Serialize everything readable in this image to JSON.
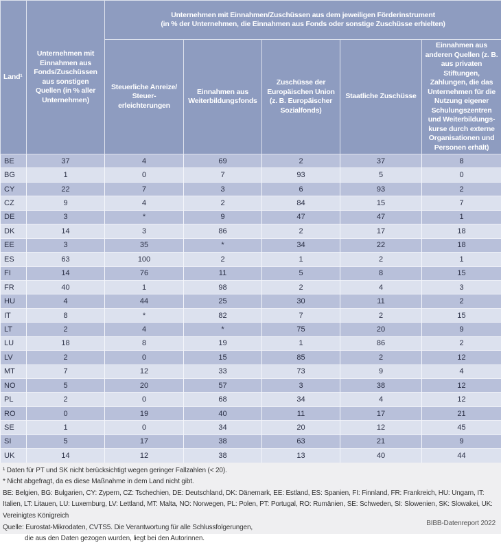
{
  "header": {
    "land": "Land¹",
    "total": "Unternehmen mit Einnahmen aus Fonds/Zuschüssen aus sonstigen Quellen (in % aller Unternehmen)",
    "group_line1": "Unternehmen mit Einnahmen/Zuschüssen aus dem jeweiligen Förderinstrument",
    "group_line2": "(in % der Unternehmen, die Einnahmen aus Fonds oder sonstige Zuschüsse erhielten)",
    "columns": [
      "Steuerliche Anreize/ Steuer-erleichterungen",
      "Einnahmen aus Weiterbildungsfonds",
      "Zuschüsse der Europäischen Union (z. B. Europäischer Sozialfonds)",
      "Staatliche Zuschüsse",
      "Einnahmen aus anderen Quellen (z. B. aus privaten Stiftungen, Zahlungen, die das Unternehmen für die Nutzung eigener Schulungszentren und Weiterbildungs-kurse durch externe Organisationen und Personen erhält)"
    ]
  },
  "rows": [
    [
      "BE",
      "37",
      "4",
      "69",
      "2",
      "37",
      "8"
    ],
    [
      "BG",
      "1",
      "0",
      "7",
      "93",
      "5",
      "0"
    ],
    [
      "CY",
      "22",
      "7",
      "3",
      "6",
      "93",
      "2"
    ],
    [
      "CZ",
      "9",
      "4",
      "2",
      "84",
      "15",
      "7"
    ],
    [
      "DE",
      "3",
      "*",
      "9",
      "47",
      "47",
      "1"
    ],
    [
      "DK",
      "14",
      "3",
      "86",
      "2",
      "17",
      "18"
    ],
    [
      "EE",
      "3",
      "35",
      "*",
      "34",
      "22",
      "18"
    ],
    [
      "ES",
      "63",
      "100",
      "2",
      "1",
      "2",
      "1"
    ],
    [
      "FI",
      "14",
      "76",
      "11",
      "5",
      "8",
      "15"
    ],
    [
      "FR",
      "40",
      "1",
      "98",
      "2",
      "4",
      "3"
    ],
    [
      "HU",
      "4",
      "44",
      "25",
      "30",
      "11",
      "2"
    ],
    [
      "IT",
      "8",
      "*",
      "82",
      "7",
      "2",
      "15"
    ],
    [
      "LT",
      "2",
      "4",
      "*",
      "75",
      "20",
      "9"
    ],
    [
      "LU",
      "18",
      "8",
      "19",
      "1",
      "86",
      "2"
    ],
    [
      "LV",
      "2",
      "0",
      "15",
      "85",
      "2",
      "12"
    ],
    [
      "MT",
      "7",
      "12",
      "33",
      "73",
      "9",
      "4"
    ],
    [
      "NO",
      "5",
      "20",
      "57",
      "3",
      "38",
      "12"
    ],
    [
      "PL",
      "2",
      "0",
      "68",
      "34",
      "4",
      "12"
    ],
    [
      "RO",
      "0",
      "19",
      "40",
      "11",
      "17",
      "21"
    ],
    [
      "SE",
      "1",
      "0",
      "34",
      "20",
      "12",
      "45"
    ],
    [
      "SI",
      "5",
      "17",
      "38",
      "63",
      "21",
      "9"
    ],
    [
      "UK",
      "14",
      "12",
      "38",
      "13",
      "40",
      "44"
    ]
  ],
  "footer": {
    "note1": "¹ Daten für PT und SK nicht berücksichtigt wegen geringer Fallzahlen (< 20).",
    "note2": "* Nicht abgefragt, da es diese Maßnahme in dem Land nicht gibt.",
    "abbreviations": "BE: Belgien, BG: Bulgarien, CY: Zypern, CZ: Tschechien, DE: Deutschland, DK: Dänemark, EE: Estland, ES: Spanien, FI: Finnland, FR: Frankreich, HU: Ungarn, IT: Italien, LT: Litauen, LU: Luxemburg, LV: Lettland, MT: Malta, NO: Norwegen, PL: Polen, PT: Portugal, RO: Rumänien, SE: Schweden, SI: Slowenien, SK: Slowakei, UK: Vereinigtes Königreich",
    "source_line1": "Quelle: Eurostat-Mikrodaten, CVTS5. Die Verantwortung für alle Schlussfolgerungen,",
    "source_line2": "die aus den Daten gezogen wurden, liegt bei den Autorinnen.",
    "brand": "BIBB-Datenreport 2022"
  }
}
